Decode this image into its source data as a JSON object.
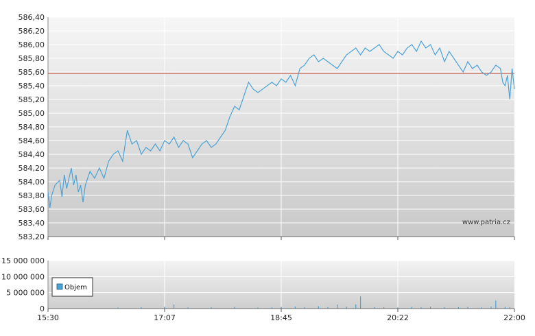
{
  "chart_data": [
    {
      "type": "line",
      "panel": "price",
      "ylim": [
        583.2,
        586.4
      ],
      "y_ticks": [
        "586,40",
        "586,20",
        "586,00",
        "585,80",
        "585,60",
        "585,40",
        "585,20",
        "585,00",
        "584,80",
        "584,60",
        "584,40",
        "584,20",
        "584,00",
        "583,80",
        "583,60",
        "583,40",
        "583,20"
      ],
      "x_ticks": [
        "15:30",
        "17:07",
        "18:45",
        "20:22",
        "22:00"
      ],
      "reference_line": 585.58,
      "watermark": "www.patria.cz",
      "grid": true,
      "colors": {
        "line": "#4aa3d6",
        "reference": "#c0392b",
        "bg_top": "#f6f6f6",
        "bg_bottom": "#c9c9c9",
        "grid": "#ffffff"
      },
      "series": [
        {
          "x": [
            0,
            0.4,
            0.8,
            1.5,
            2.5,
            3,
            3.5,
            4,
            4.5,
            5,
            5.5,
            6,
            6.5,
            7,
            7.5,
            8,
            9,
            10,
            11,
            12,
            13,
            14,
            15,
            16,
            17,
            18,
            19,
            20,
            21,
            22,
            23,
            24,
            25,
            26,
            27,
            28,
            29,
            30,
            31,
            32,
            33,
            34,
            35,
            36,
            37,
            38,
            39,
            40,
            41,
            42,
            43,
            44,
            45,
            46,
            47,
            48,
            49,
            50,
            51,
            52,
            53,
            54,
            55,
            56,
            57,
            58,
            59,
            60,
            61,
            62,
            63,
            64,
            65,
            66,
            67,
            68,
            69,
            70,
            71,
            72,
            73,
            74,
            75,
            76,
            77,
            78,
            79,
            80,
            81,
            82,
            83,
            84,
            85,
            86,
            87,
            88,
            89,
            90,
            91,
            92,
            93,
            94,
            95,
            96,
            97,
            97.5,
            98,
            98.5,
            99,
            99.5,
            100
          ],
          "values": [
            583.85,
            583.62,
            583.8,
            583.95,
            584.02,
            583.78,
            584.1,
            583.9,
            584.05,
            584.2,
            583.95,
            584.1,
            583.85,
            583.95,
            583.7,
            583.95,
            584.15,
            584.05,
            584.2,
            584.05,
            584.3,
            584.4,
            584.45,
            584.3,
            584.75,
            584.55,
            584.6,
            584.4,
            584.5,
            584.45,
            584.55,
            584.45,
            584.6,
            584.55,
            584.65,
            584.5,
            584.6,
            584.55,
            584.35,
            584.45,
            584.55,
            584.6,
            584.5,
            584.55,
            584.65,
            584.75,
            584.95,
            585.1,
            585.05,
            585.25,
            585.45,
            585.35,
            585.3,
            585.35,
            585.4,
            585.45,
            585.4,
            585.5,
            585.45,
            585.55,
            585.4,
            585.65,
            585.7,
            585.8,
            585.85,
            585.75,
            585.8,
            585.75,
            585.7,
            585.65,
            585.75,
            585.85,
            585.9,
            585.95,
            585.85,
            585.95,
            585.9,
            585.95,
            586.0,
            585.9,
            585.85,
            585.8,
            585.9,
            585.85,
            585.95,
            586.0,
            585.9,
            586.05,
            585.95,
            586.0,
            585.85,
            585.95,
            585.75,
            585.9,
            585.8,
            585.7,
            585.6,
            585.75,
            585.65,
            585.7,
            585.6,
            585.55,
            585.6,
            585.7,
            585.65,
            585.45,
            585.4,
            585.55,
            585.2,
            585.65,
            585.35
          ]
        }
      ]
    },
    {
      "type": "bar",
      "panel": "volume",
      "ylim": [
        0,
        15000000
      ],
      "y_ticks": [
        "15 000 000",
        "10 000 000",
        "5 000 000",
        "0"
      ],
      "x_ticks": [
        "15:30",
        "17:07",
        "18:45",
        "20:22",
        "22:00"
      ],
      "legend": {
        "label": "Objem",
        "placement": "left"
      },
      "colors": {
        "bar": "#4aa3d6",
        "bg_top": "#f6f6f6",
        "bg_bottom": "#c9c9c9"
      },
      "series": [
        {
          "name": "Objem",
          "x": [
            15,
            20,
            25,
            27,
            30,
            35,
            40,
            45,
            48,
            50,
            53,
            55,
            58,
            60,
            62,
            64,
            66,
            67,
            70,
            72,
            75,
            78,
            80,
            82,
            85,
            88,
            90,
            93,
            95,
            96,
            98,
            99
          ],
          "values": [
            300000,
            400000,
            500000,
            1300000,
            350000,
            400000,
            500000,
            300000,
            350000,
            500000,
            600000,
            400000,
            700000,
            450000,
            1300000,
            600000,
            1300000,
            3800000,
            450000,
            400000,
            350000,
            500000,
            400000,
            600000,
            400000,
            450000,
            500000,
            350000,
            600000,
            2500000,
            500000,
            400000
          ]
        }
      ]
    }
  ]
}
